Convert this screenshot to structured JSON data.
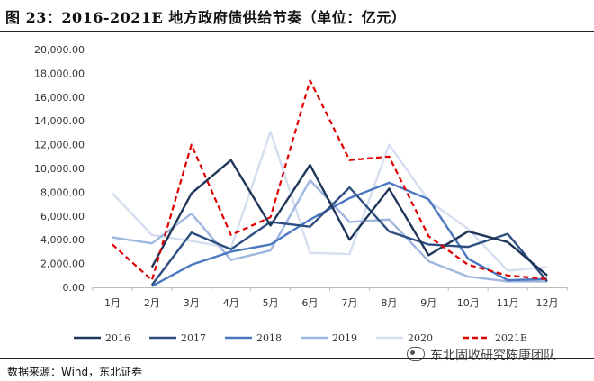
{
  "header": {
    "title": "图 23：2016-2021E 地方政府债供给节奏（单位：亿元）"
  },
  "footer": {
    "source": "数据来源：Wind，东北证券",
    "watermark": "东北固收研究陈康团队"
  },
  "colors": {
    "s2016": "#1f3659",
    "s2017": "#2f4f82",
    "s2018": "#4a78c0",
    "s2019": "#9fb6de",
    "s2020": "#d4def0",
    "s2021E": "#e00000"
  },
  "chart_data": {
    "type": "line",
    "title": "",
    "xlabel": "",
    "ylabel": "",
    "categories": [
      "1月",
      "2月",
      "3月",
      "4月",
      "5月",
      "6月",
      "7月",
      "8月",
      "9月",
      "10月",
      "11月",
      "12月"
    ],
    "ylim": [
      0,
      20000
    ],
    "yticks": [
      "0.00",
      "2,000.00",
      "4,000.00",
      "6,000.00",
      "8,000.00",
      "10,000.00",
      "12,000.00",
      "14,000.00",
      "16,000.00",
      "18,000.00",
      "20,000.00"
    ],
    "legend_position": "bottom",
    "grid": false,
    "series": [
      {
        "name": "2016",
        "color": "#1f3659",
        "dash": false,
        "values": [
          null,
          1700,
          7900,
          10700,
          5200,
          10300,
          4000,
          8300,
          2700,
          4700,
          3800,
          1000
        ]
      },
      {
        "name": "2017",
        "color": "#2f4f82",
        "dash": false,
        "values": [
          null,
          200,
          4600,
          3200,
          5500,
          5100,
          8400,
          4700,
          3600,
          3400,
          4500,
          500
        ]
      },
      {
        "name": "2018",
        "color": "#4a78c0",
        "dash": false,
        "values": [
          null,
          100,
          1900,
          3000,
          3600,
          5700,
          7500,
          8800,
          7400,
          2400,
          600,
          700
        ]
      },
      {
        "name": "2019",
        "color": "#9fb6de",
        "dash": false,
        "values": [
          4200,
          3700,
          6200,
          2300,
          3100,
          9000,
          5500,
          5700,
          2200,
          900,
          500,
          500
        ]
      },
      {
        "name": "2020",
        "color": "#d4def0",
        "dash": false,
        "values": [
          7900,
          4400,
          3900,
          3300,
          13100,
          2900,
          2800,
          12000,
          7300,
          4900,
          1400,
          1700
        ]
      },
      {
        "name": "2021E",
        "color": "#e00000",
        "dash": true,
        "values": [
          3600,
          600,
          12000,
          4400,
          5900,
          17400,
          10700,
          11000,
          4300,
          1900,
          1000,
          700
        ]
      }
    ]
  }
}
